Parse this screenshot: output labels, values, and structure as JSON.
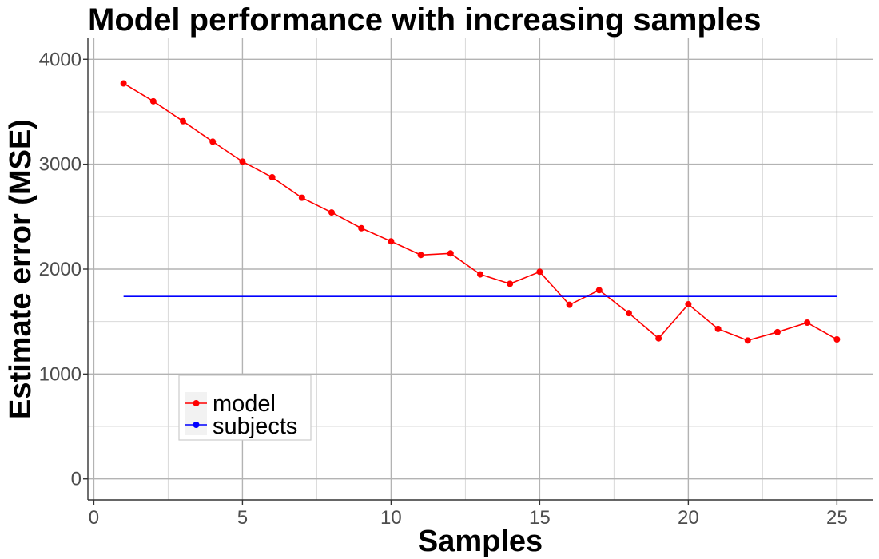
{
  "chart_data": {
    "type": "line",
    "title": "Model performance with increasing samples",
    "xlabel": "Samples",
    "ylabel": "Estimate error (MSE)",
    "xlim": [
      -0.2,
      26.2
    ],
    "ylim": [
      -200,
      4200
    ],
    "x_ticks": [
      0,
      5,
      10,
      15,
      20,
      25
    ],
    "y_ticks": [
      0,
      1000,
      2000,
      3000,
      4000
    ],
    "x_tick_labels": [
      "0",
      "5",
      "10",
      "15",
      "20",
      "25"
    ],
    "y_tick_labels": [
      "0",
      "1000",
      "2000",
      "3000",
      "4000"
    ],
    "x_minor_ticks": [
      2.5,
      7.5,
      12.5,
      17.5,
      22.5
    ],
    "y_minor_ticks": [
      500,
      1500,
      2500,
      3500
    ],
    "grid": true,
    "legend_position": "bottom-left",
    "series": [
      {
        "name": "model",
        "color": "#ff0000",
        "markers": true,
        "x": [
          1,
          2,
          3,
          4,
          5,
          6,
          7,
          8,
          9,
          10,
          11,
          12,
          13,
          14,
          15,
          16,
          17,
          18,
          19,
          20,
          21,
          22,
          23,
          24,
          25
        ],
        "values": [
          3770,
          3600,
          3410,
          3215,
          3025,
          2875,
          2680,
          2540,
          2390,
          2265,
          2135,
          2150,
          1950,
          1860,
          1975,
          1660,
          1800,
          1580,
          1340,
          1665,
          1430,
          1320,
          1400,
          1490,
          1330
        ]
      },
      {
        "name": "subjects",
        "color": "#0000ff",
        "markers": false,
        "x": [
          1,
          25
        ],
        "values": [
          1740,
          1740
        ]
      }
    ]
  }
}
